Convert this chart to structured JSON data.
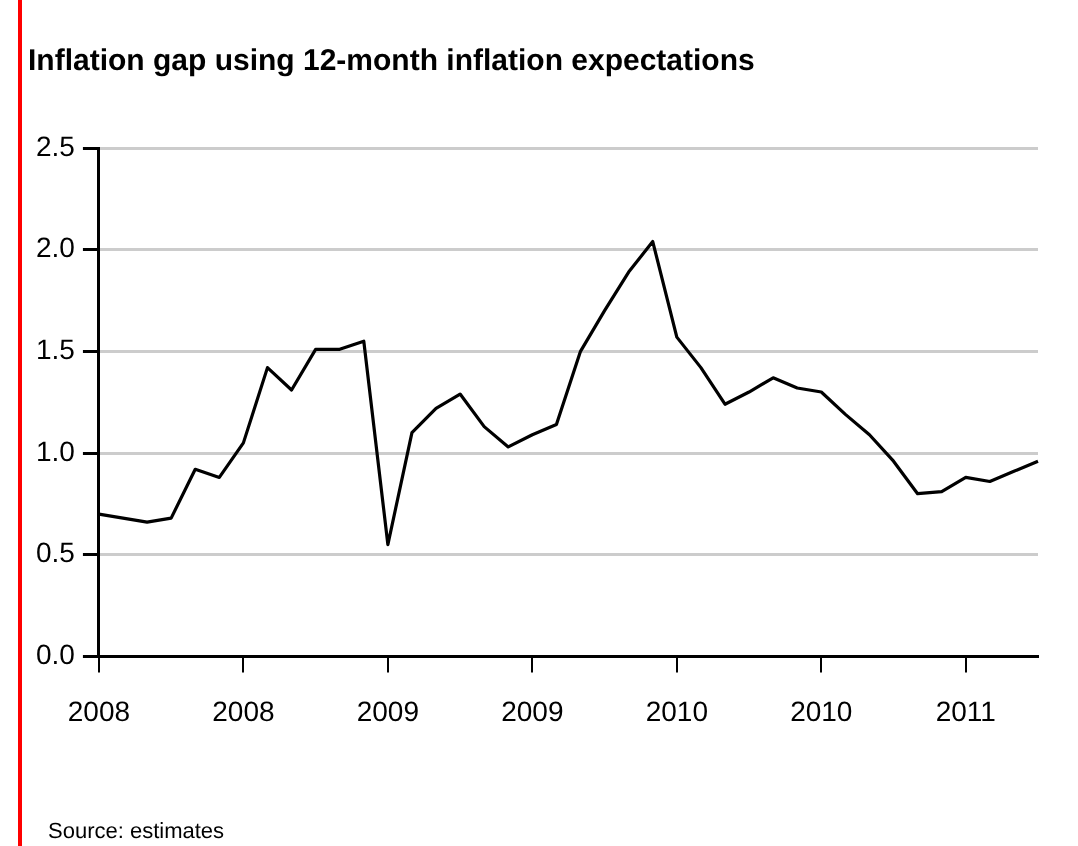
{
  "chart_data": {
    "type": "line",
    "title": "Inflation gap using 12-month inflation expectations",
    "categories": [
      "2008",
      null,
      null,
      null,
      null,
      null,
      "2008",
      null,
      null,
      null,
      null,
      null,
      "2009",
      null,
      null,
      null,
      null,
      null,
      "2009",
      null,
      null,
      null,
      null,
      null,
      "2010",
      null,
      null,
      null,
      null,
      null,
      "2010",
      null,
      null,
      null,
      null,
      null,
      "2011",
      null,
      null,
      null
    ],
    "series": [
      {
        "color": "#000000",
        "values": [
          0.7,
          0.68,
          0.66,
          0.68,
          0.92,
          0.88,
          1.05,
          1.42,
          1.31,
          1.51,
          1.51,
          1.55,
          0.55,
          1.1,
          1.22,
          1.29,
          1.13,
          1.03,
          1.09,
          1.14,
          1.5,
          1.7,
          1.89,
          2.04,
          1.57,
          1.42,
          1.24,
          1.3,
          1.37,
          1.32,
          1.3,
          1.19,
          1.09,
          0.96,
          0.8,
          0.81,
          0.88,
          0.86,
          0.91,
          0.96
        ]
      }
    ],
    "ylim": [
      0,
      2.5
    ],
    "yticks": [
      {
        "value": 0,
        "label": "0.0"
      },
      0.5,
      {
        "value": 1,
        "label": "1.0"
      },
      1.5,
      {
        "value": 2,
        "label": "2.0"
      },
      2.5
    ],
    "grid": "y",
    "legend": false,
    "marker": "none",
    "line_style": "solid",
    "annotations": [
      "Source: estimates"
    ]
  }
}
